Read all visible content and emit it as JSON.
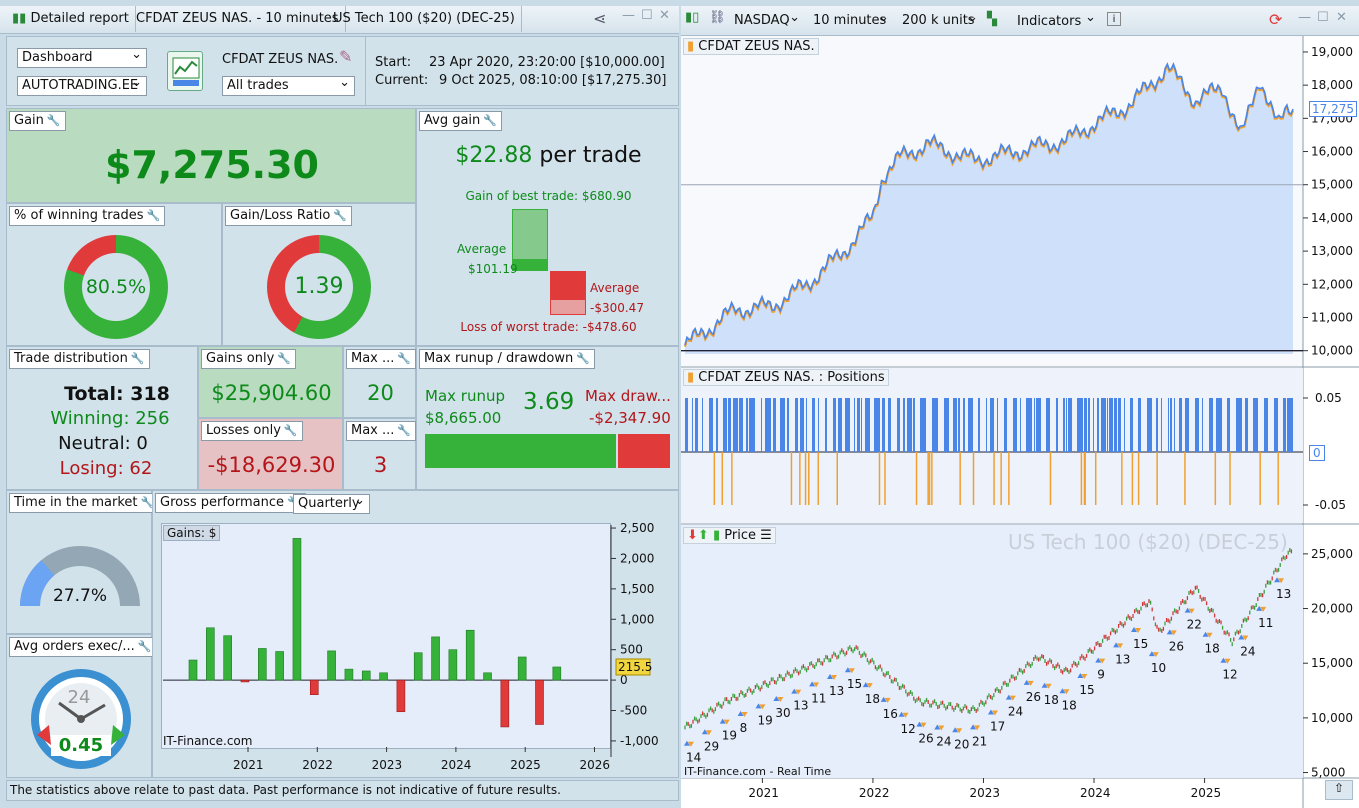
{
  "left_tabs": {
    "detailed_report": "Detailed report",
    "instrument_tab": "CFDAT ZEUS NAS. - 10 minutes",
    "market_tab": "US Tech 100 ($20) (DEC-25)"
  },
  "top": {
    "dashboard": "Dashboard",
    "account": "AUTOTRADING.EE",
    "system_name": "CFDAT ZEUS NAS.",
    "trades_filter": "All trades",
    "start_label": "Start:",
    "start_value": "23 Apr 2020, 23:20:00 [$10,000.00]",
    "current_label": "Current:",
    "current_value": "9 Oct 2025, 08:10:00 [$17,275.30]"
  },
  "gain": {
    "title": "Gain",
    "value": "$7,275.30"
  },
  "avg_gain": {
    "title": "Avg gain",
    "value": "$22.88",
    "suffix": "per trade",
    "best": "Gain of best trade: $680.90",
    "avg_win_label": "Average",
    "avg_win_value": "$101.19",
    "avg_loss_label": "Average",
    "avg_loss_value": "-$300.47",
    "worst": "Loss of worst trade: -$478.60"
  },
  "winning_pct": {
    "title": "% of winning trades",
    "value": "80.5%",
    "fraction": 0.805
  },
  "gain_loss_ratio": {
    "title": "Gain/Loss Ratio",
    "value": "1.39",
    "fraction": 0.58
  },
  "distribution": {
    "title": "Trade distribution",
    "total": "Total: 318",
    "winning": "Winning: 256",
    "neutral": "Neutral: 0",
    "losing": "Losing: 62"
  },
  "gains_only": {
    "title": "Gains only",
    "value": "$25,904.60"
  },
  "losses_only": {
    "title": "Losses only",
    "value": "-$18,629.30"
  },
  "max1": {
    "title": "Max ...",
    "value": "20"
  },
  "max2": {
    "title": "Max ...",
    "value": "3"
  },
  "runup": {
    "title": "Max runup / drawdown",
    "runup_label": "Max runup",
    "runup_value": "$8,665.00",
    "ratio": "3.69",
    "dd_label": "Max draw...",
    "dd_value": "-$2,347.90",
    "runup_fraction": 0.787
  },
  "time_market": {
    "title": "Time in the market",
    "value": "27.7%",
    "fraction": 0.277
  },
  "avg_orders": {
    "title": "Avg orders exec/...",
    "value": "0.45",
    "dial_label": "24"
  },
  "gross": {
    "title": "Gross performance",
    "period": "Quarterly",
    "gains_label": "Gains: $",
    "watermark": "IT-Finance.com",
    "last_value": "215.5"
  },
  "footer": "The statistics above relate to past data. Past performance is not indicative of future results.",
  "right_toolbar": {
    "exchange": "NASDAQ",
    "timeframe": "10 minutes",
    "units": "200 k units",
    "indicators": "Indicators"
  },
  "equity": {
    "title": "CFDAT ZEUS NAS.",
    "last": "17,275"
  },
  "positions": {
    "title": "CFDAT ZEUS NAS. : Positions",
    "zero": "0"
  },
  "price": {
    "title": "Price",
    "watermark": "US Tech 100 ($20) (DEC-25)",
    "footer": "IT-Finance.com - Real Time"
  },
  "colors": {
    "green": "#36b23a",
    "red": "#e03a3a",
    "blue": "#4a86e8",
    "orange": "#f0a030"
  },
  "chart_data": [
    {
      "type": "bar",
      "title": "",
      "x": [
        "2020Q3",
        "2020Q4",
        "2021Q1",
        "2021Q2",
        "2021Q3",
        "2021Q4",
        "2022Q1",
        "2022Q2",
        "2022Q3",
        "2022Q4",
        "2023Q1",
        "2023Q2",
        "2023Q3",
        "2023Q4",
        "2024Q1",
        "2024Q2",
        "2024Q3",
        "2024Q4",
        "2025Q1",
        "2025Q2",
        "2025Q3",
        "2025Q4"
      ],
      "values": [
        330,
        860,
        730,
        -30,
        520,
        470,
        2330,
        -240,
        480,
        180,
        150,
        120,
        -520,
        450,
        710,
        500,
        820,
        120,
        -770,
        380,
        -730,
        215.5
      ],
      "ylim": [
        -1100,
        2550
      ],
      "yticks": [
        -1000,
        -500,
        0,
        500,
        1000,
        1500,
        2000,
        2500
      ],
      "xticks": [
        "2021",
        "2022",
        "2023",
        "2024",
        "2025",
        "2026"
      ]
    },
    {
      "type": "line",
      "title": "CFDAT ZEUS NAS.",
      "yticks": [
        10000,
        11000,
        12000,
        13000,
        14000,
        15000,
        16000,
        17000,
        18000,
        19000
      ],
      "ylim": [
        9900,
        19300
      ],
      "x_range": [
        "2020-04",
        "2025-10"
      ],
      "keypoints": [
        [
          "2020-04",
          10000
        ],
        [
          "2020-10",
          11200
        ],
        [
          "2021-02",
          11300
        ],
        [
          "2021-06",
          12000
        ],
        [
          "2021-10",
          13000
        ],
        [
          "2022-01",
          14000
        ],
        [
          "2022-02",
          15200
        ],
        [
          "2022-04",
          15800
        ],
        [
          "2022-07",
          16200
        ],
        [
          "2022-12",
          15700
        ],
        [
          "2023-05",
          16000
        ],
        [
          "2023-10",
          16300
        ],
        [
          "2024-01",
          16800
        ],
        [
          "2024-05",
          17400
        ],
        [
          "2024-09",
          18500
        ],
        [
          "2024-12",
          17500
        ],
        [
          "2025-03",
          17900
        ],
        [
          "2025-05",
          16400
        ],
        [
          "2025-07",
          18200
        ],
        [
          "2025-09",
          16700
        ],
        [
          "2025-10",
          17275
        ]
      ]
    },
    {
      "type": "bar",
      "title": "CFDAT ZEUS NAS. : Positions",
      "yticks": [
        0.05,
        -0.05
      ],
      "ylim": [
        -0.06,
        0.06
      ]
    },
    {
      "type": "line",
      "title": "Price",
      "yticks": [
        5000,
        10000,
        15000,
        20000,
        25000
      ],
      "ylim": [
        4500,
        27000
      ],
      "xticks": [
        "2021",
        "2022",
        "2023",
        "2024",
        "2025"
      ],
      "keypoints": [
        [
          "2020-04",
          8800
        ],
        [
          "2020-09",
          11500
        ],
        [
          "2021-02",
          13300
        ],
        [
          "2021-11",
          16400
        ],
        [
          "2022-06",
          11500
        ],
        [
          "2022-12",
          10700
        ],
        [
          "2023-07",
          15600
        ],
        [
          "2023-10",
          14200
        ],
        [
          "2024-07",
          20700
        ],
        [
          "2024-08",
          17800
        ],
        [
          "2024-12",
          21900
        ],
        [
          "2025-04",
          17000
        ],
        [
          "2025-10",
          25100
        ]
      ],
      "markers": [
        "14",
        "29",
        "19",
        "8",
        "19",
        "30",
        "13",
        "11",
        "13",
        "15",
        "18",
        "16",
        "12",
        "26",
        "24",
        "20",
        "21",
        "17",
        "24",
        "26",
        "18",
        "18",
        "15",
        "9",
        "13",
        "15",
        "10",
        "26",
        "22",
        "18",
        "12",
        "24",
        "11",
        "13"
      ]
    }
  ]
}
